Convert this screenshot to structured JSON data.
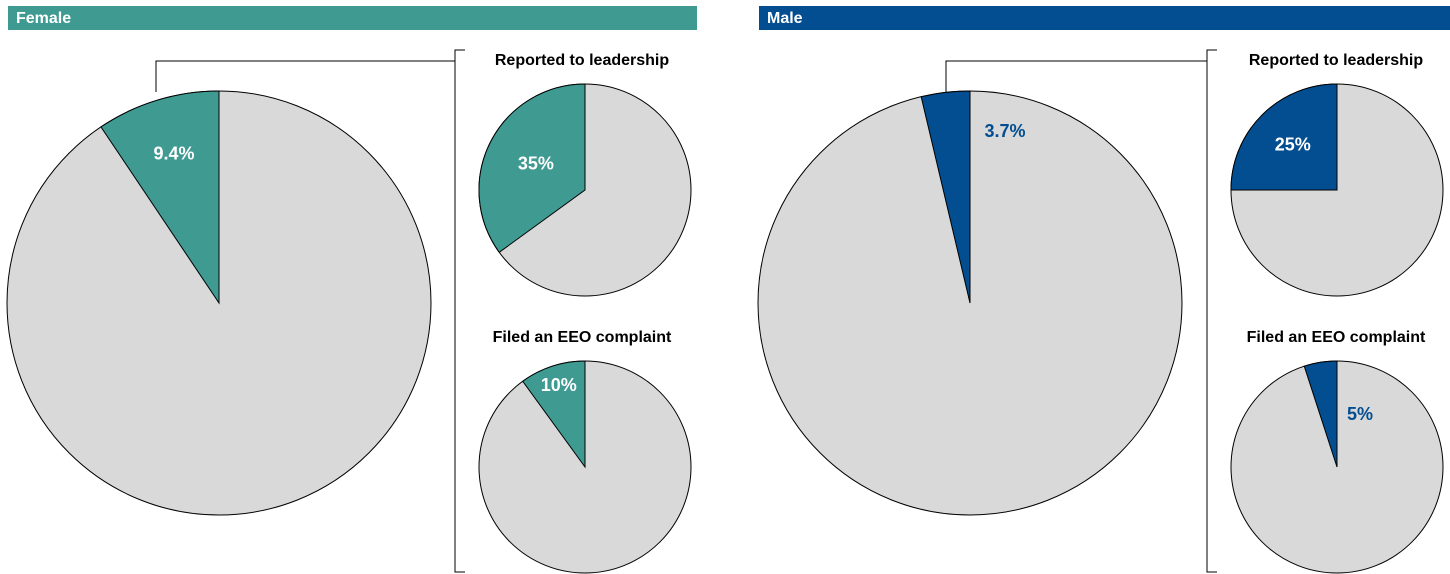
{
  "chart_data": [
    {
      "type": "pie",
      "title": "Female",
      "values": [
        9.4
      ],
      "value_labels": [
        "9.4%"
      ],
      "color": "#3f9a92"
    },
    {
      "type": "pie",
      "title": "Reported to leadership",
      "values": [
        35
      ],
      "value_labels": [
        "35%"
      ],
      "color": "#3f9a92"
    },
    {
      "type": "pie",
      "title": "Filed an EEO complaint",
      "values": [
        10
      ],
      "value_labels": [
        "10%"
      ],
      "color": "#3f9a92"
    },
    {
      "type": "pie",
      "title": "Male",
      "values": [
        3.7
      ],
      "value_labels": [
        "3.7%"
      ],
      "color": "#034e91"
    },
    {
      "type": "pie",
      "title": "Reported to leadership",
      "values": [
        25
      ],
      "value_labels": [
        "25%"
      ],
      "color": "#034e91"
    },
    {
      "type": "pie",
      "title": "Filed an EEO complaint",
      "values": [
        5
      ],
      "value_labels": [
        "5%"
      ],
      "color": "#034e91"
    }
  ]
}
